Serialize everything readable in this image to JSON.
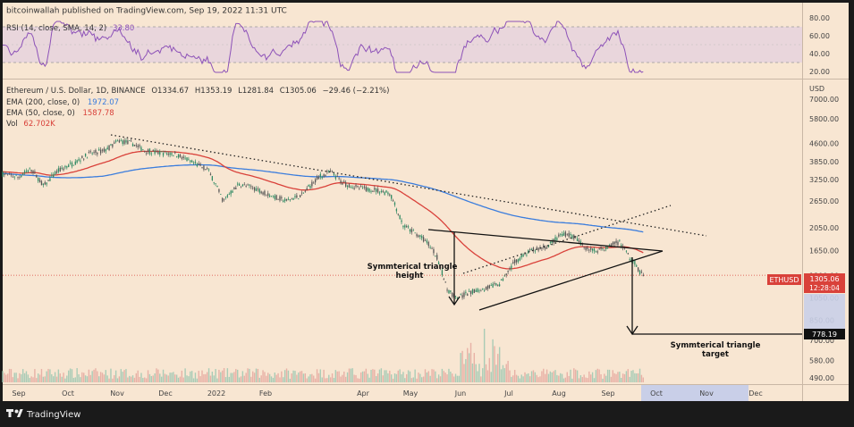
{
  "header": {
    "publisher": "bitcoinwallah published on TradingView.com, Sep 19, 2022 11:31 UTC"
  },
  "footer": {
    "brand": "TradingView"
  },
  "chart_data": {
    "type": "candlestick",
    "symbol_line": "Ethereum / U.S. Dollar, 1D, BINANCE",
    "ohlc": {
      "open": "O1334.67",
      "high": "H1353.19",
      "low": "L1281.84",
      "close": "C1305.06",
      "change": "−29.46 (−2.21%)"
    },
    "indicators": {
      "rsi": {
        "label": "RSI (14, close, SMA, 14, 2)",
        "value": "33.80",
        "ticks": [
          "80.00",
          "60.00",
          "40.00",
          "20.00"
        ],
        "ylim": [
          14,
          84
        ],
        "bands": [
          30,
          70
        ]
      },
      "ema200": {
        "label": "EMA (200, close, 0)",
        "value": "1972.07",
        "color": "#3b7ddd"
      },
      "ema50": {
        "label": "EMA (50, close, 0)",
        "value": "1587.78",
        "color": "#d9413a"
      },
      "vol": {
        "label": "Vol",
        "value": "62.702K",
        "color": "#d9413a"
      }
    },
    "y_axis": {
      "unit": "USD",
      "scale": "log",
      "ticks": [
        "7000.00",
        "5800.00",
        "4600.00",
        "3850.00",
        "3250.00",
        "2650.00",
        "2050.00",
        "1650.00",
        "1300.00",
        "1050.00",
        "850.00",
        "700.00",
        "580.00",
        "490.00"
      ],
      "ylim": [
        470,
        8300
      ]
    },
    "x_axis": {
      "ticks": [
        "Sep",
        "Oct",
        "Nov",
        "Dec",
        "2022",
        "Feb",
        "Apr",
        "May",
        "Jun",
        "Jul",
        "Aug",
        "Sep",
        "Oct",
        "Nov",
        "Dec"
      ]
    },
    "price_labels": {
      "symbol": "ETHUSD",
      "last": "1305.06",
      "countdown": "12:28:04",
      "target": "778.19"
    },
    "annotations": {
      "height_label": [
        "Symmterical triangle",
        "height"
      ],
      "target_label": [
        "Symmterical triangle",
        "target"
      ]
    },
    "colors": {
      "background": "#f8e6d2",
      "up": "#2f8a63",
      "down": "#555555",
      "price_tag": "#d9413a",
      "rsi_band": "#e3cfe0",
      "rsi_line": "#8d52b8",
      "future_zone": "#c9cfe8"
    }
  }
}
